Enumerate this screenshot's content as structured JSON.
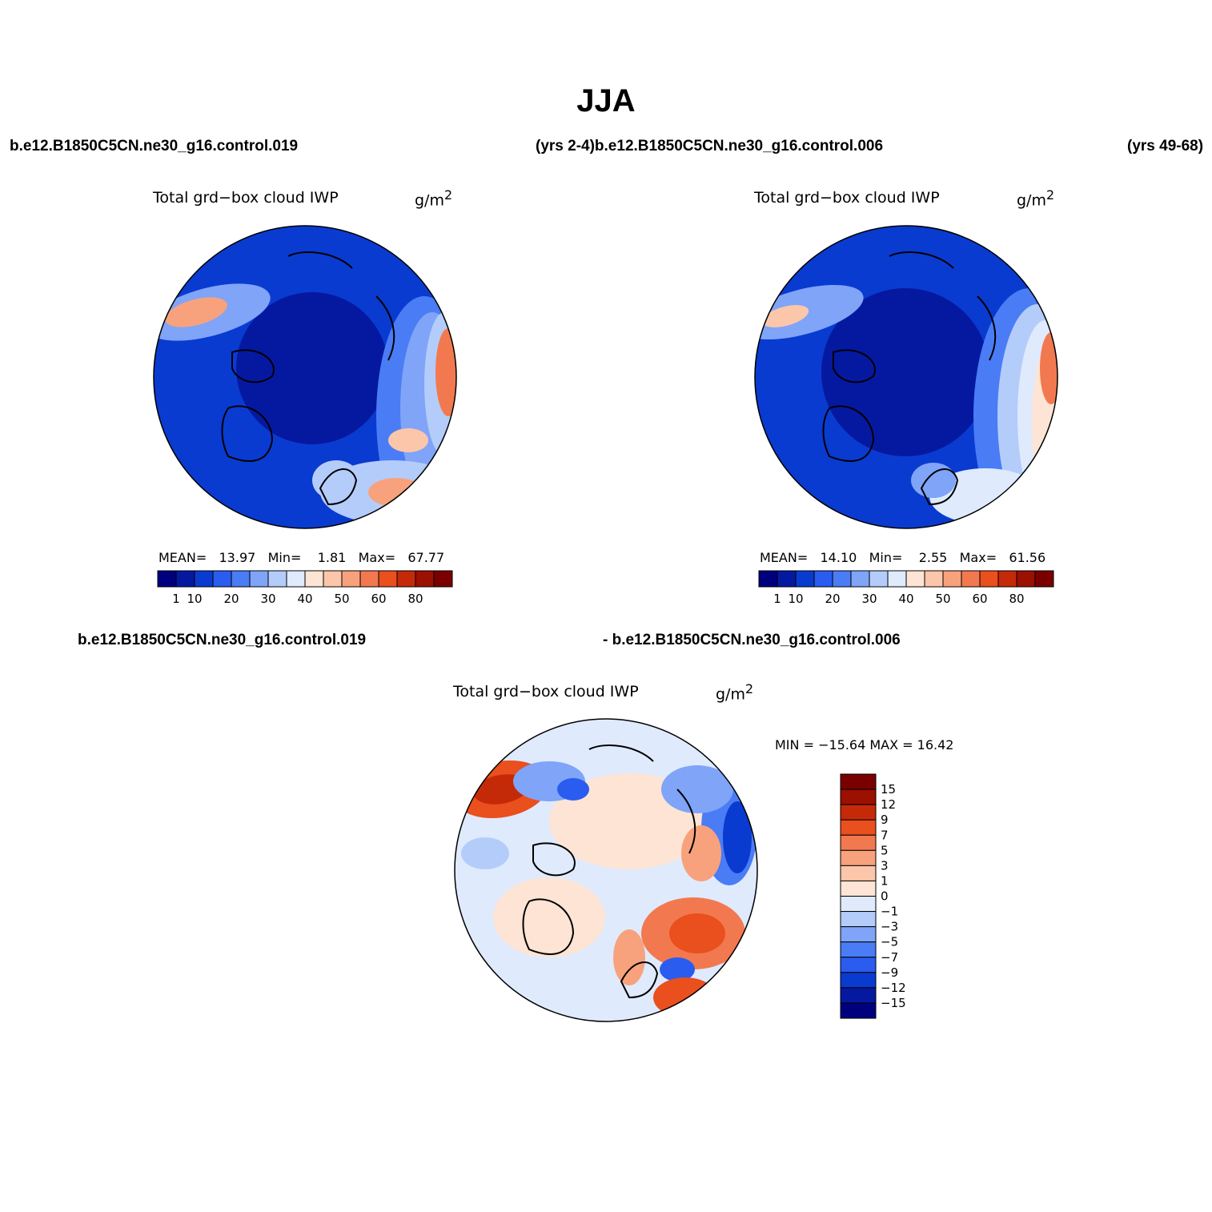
{
  "title": "JJA",
  "top_left_case": "b.e12.B1850C5CN.ne30_g16.control.019",
  "top_middle_label": "(yrs 2-4)b.e12.B1850C5CN.ne30_g16.control.006",
  "top_right_years": "(yrs 49-68)",
  "diff_case_a": "b.e12.B1850C5CN.ne30_g16.control.019",
  "diff_case_b": "- b.e12.B1850C5CN.ne30_g16.control.006",
  "colors": {
    "abs_palette": [
      "#00007f",
      "#0519a0",
      "#0a3bd0",
      "#2a5cf0",
      "#4a7cf5",
      "#7fa4f8",
      "#b4ccfa",
      "#dfeafd",
      "#fde4d4",
      "#fbc6aa",
      "#f7a27d",
      "#f2794f",
      "#ea4f1e",
      "#c52a08",
      "#9c1000",
      "#7a0000"
    ],
    "diff_palette": [
      "#00007f",
      "#0519a0",
      "#0a3bd0",
      "#2a5cf0",
      "#4a7cf5",
      "#7fa4f8",
      "#b4ccfa",
      "#dfeafd",
      "#fde4d4",
      "#fbc6aa",
      "#f7a27d",
      "#f2794f",
      "#ea4f1e",
      "#c52a08",
      "#9c1000",
      "#7a0000"
    ],
    "land_outline": "#000000"
  },
  "chart_data": [
    {
      "type": "heatmap",
      "projection": "north-polar-stereographic",
      "title": "Total grd−box cloud IWP",
      "units": "g/m²",
      "mean_label": "MEAN=",
      "mean": "13.97",
      "min_label": "Min=",
      "min": "1.81",
      "max_label": "Max=",
      "max": "67.77",
      "colorbar_labels": [
        "1",
        "10",
        "20",
        "30",
        "40",
        "50",
        "60",
        "80"
      ],
      "colorbar_orientation": "horizontal"
    },
    {
      "type": "heatmap",
      "projection": "north-polar-stereographic",
      "title": "Total grd−box cloud IWP",
      "units": "g/m²",
      "mean_label": "MEAN=",
      "mean": "14.10",
      "min_label": "Min=",
      "min": "2.55",
      "max_label": "Max=",
      "max": "61.56",
      "colorbar_labels": [
        "1",
        "10",
        "20",
        "30",
        "40",
        "50",
        "60",
        "80"
      ],
      "colorbar_orientation": "horizontal"
    },
    {
      "type": "heatmap",
      "projection": "north-polar-stereographic",
      "title": "Total grd−box cloud IWP",
      "units": "g/m²",
      "minmax_label": "MIN = −15.64 MAX =   16.42",
      "colorbar_labels": [
        "15",
        "12",
        "9",
        "7",
        "5",
        "3",
        "1",
        "0",
        "−1",
        "−3",
        "−5",
        "−7",
        "−9",
        "−12",
        "−15"
      ],
      "colorbar_orientation": "vertical"
    }
  ]
}
